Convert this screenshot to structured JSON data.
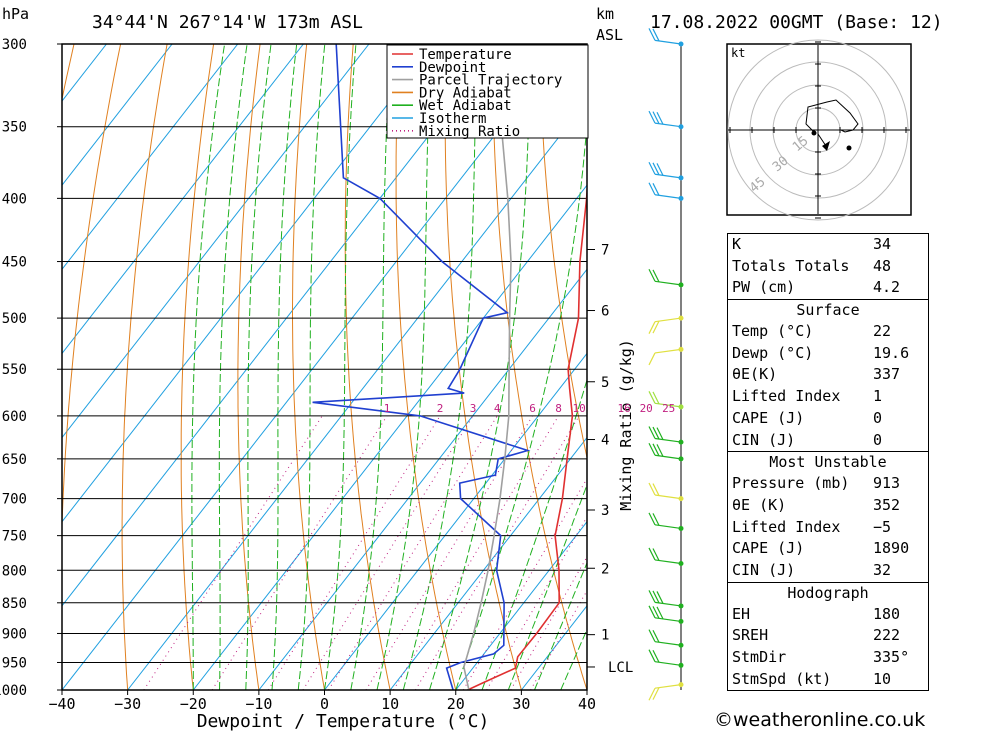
{
  "header": {
    "pressure_unit": "hPa",
    "location": "34°44'N  267°14'W  173m  ASL",
    "height_unit_1": "km",
    "height_unit_2": "ASL",
    "datetime": "17.08.2022  00GMT  (Base: 12)"
  },
  "chart_data": {
    "type": "line",
    "title": "34°44'N  267°14'W  173m  ASL",
    "xlabel": "Dewpoint / Temperature (°C)",
    "ylabel": "hPa",
    "y2label": "Mixing Ratio (g/kg)",
    "xlim": [
      -40,
      40
    ],
    "ylim": [
      1000,
      300
    ],
    "xticks": [
      -40,
      -30,
      -20,
      -10,
      0,
      10,
      20,
      30,
      40
    ],
    "xtick_labels": [
      "−40",
      "−30",
      "−20",
      "−10",
      "0",
      "10",
      "20",
      "30",
      "40"
    ],
    "pressure_levels": [
      300,
      350,
      400,
      450,
      500,
      550,
      600,
      650,
      700,
      750,
      800,
      850,
      900,
      950,
      1000
    ],
    "height_km_ticks": [
      {
        "label": "7",
        "p": 440
      },
      {
        "label": "6",
        "p": 493
      },
      {
        "label": "5",
        "p": 563
      },
      {
        "label": "4",
        "p": 627
      },
      {
        "label": "3",
        "p": 715
      },
      {
        "label": "2",
        "p": 797
      },
      {
        "label": "1",
        "p": 902
      },
      {
        "label": "LCL",
        "p": 958
      }
    ],
    "mixing_ratio_labels": [
      "1",
      "2",
      "3",
      "4",
      "6",
      "8",
      "10",
      "16",
      "20",
      "25"
    ],
    "legend": {
      "position": "top-right",
      "entries": [
        {
          "name": "Temperature",
          "color": "#e03030",
          "style": "solid"
        },
        {
          "name": "Dewpoint",
          "color": "#2040d0",
          "style": "solid"
        },
        {
          "name": "Parcel Trajectory",
          "color": "#a0a0a0",
          "style": "solid"
        },
        {
          "name": "Dry Adiabat",
          "color": "#e08020",
          "style": "solid"
        },
        {
          "name": "Wet Adiabat",
          "color": "#20b020",
          "style": "solid"
        },
        {
          "name": "Isotherm",
          "color": "#20a0e0",
          "style": "solid"
        },
        {
          "name": "Mixing Ratio",
          "color": "#c02080",
          "style": "dotted"
        }
      ]
    },
    "series": [
      {
        "name": "Temperature",
        "color": "#e03030",
        "points": [
          [
            1000,
            21.8
          ],
          [
            985,
            23.5
          ],
          [
            960,
            26.5
          ],
          [
            940,
            25.5
          ],
          [
            900,
            25.6
          ],
          [
            850,
            25.4
          ],
          [
            800,
            21.5
          ],
          [
            750,
            16.8
          ],
          [
            700,
            13.5
          ],
          [
            650,
            9.5
          ],
          [
            600,
            5.2
          ],
          [
            570,
            1.5
          ],
          [
            550,
            -1.0
          ],
          [
            500,
            -5.5
          ],
          [
            450,
            -12.0
          ],
          [
            400,
            -18.5
          ],
          [
            380,
            -21.5
          ],
          [
            360,
            -24.8
          ],
          [
            300,
            -35.0
          ]
        ]
      },
      {
        "name": "Dewpoint",
        "color": "#2040d0",
        "points": [
          [
            1000,
            19.6
          ],
          [
            960,
            16.0
          ],
          [
            950,
            17.5
          ],
          [
            935,
            21.5
          ],
          [
            920,
            22.0
          ],
          [
            850,
            17.0
          ],
          [
            800,
            12.0
          ],
          [
            750,
            8.5
          ],
          [
            700,
            -2.0
          ],
          [
            680,
            -4.0
          ],
          [
            670,
            0.5
          ],
          [
            650,
            -1.0
          ],
          [
            640,
            2.5
          ],
          [
            600,
            -18.0
          ],
          [
            585,
            -36.0
          ],
          [
            575,
            -14.0
          ],
          [
            570,
            -17.0
          ],
          [
            550,
            -17.5
          ],
          [
            500,
            -20.0
          ],
          [
            495,
            -17.0
          ],
          [
            450,
            -33.0
          ],
          [
            400,
            -50.0
          ],
          [
            385,
            -58.0
          ],
          [
            300,
            -75.0
          ]
        ]
      },
      {
        "name": "Parcel Trajectory",
        "color": "#a0a0a0",
        "points": [
          [
            1000,
            22.0
          ],
          [
            958,
            18.5
          ],
          [
            900,
            16.0
          ],
          [
            850,
            13.5
          ],
          [
            800,
            10.7
          ],
          [
            750,
            7.5
          ],
          [
            700,
            4.0
          ],
          [
            650,
            0.0
          ],
          [
            600,
            -4.5
          ],
          [
            550,
            -10.0
          ],
          [
            500,
            -16.0
          ],
          [
            450,
            -22.5
          ],
          [
            400,
            -30.5
          ],
          [
            350,
            -40.0
          ],
          [
            300,
            -51.0
          ]
        ]
      }
    ]
  },
  "hodograph": {
    "unit": "kt",
    "ring_labels": [
      "15",
      "30",
      "45"
    ]
  },
  "stats": {
    "general": [
      {
        "label": "K",
        "value": "34"
      },
      {
        "label": "Totals Totals",
        "value": "48"
      },
      {
        "label": "PW (cm)",
        "value": "4.2"
      }
    ],
    "surface": {
      "title": "Surface",
      "rows": [
        {
          "label": "Temp (°C)",
          "value": "22"
        },
        {
          "label": "Dewp (°C)",
          "value": "19.6"
        },
        {
          "label": "θE(K)",
          "value": "337"
        },
        {
          "label": "Lifted Index",
          "value": "1"
        },
        {
          "label": "CAPE (J)",
          "value": "0"
        },
        {
          "label": "CIN (J)",
          "value": "0"
        }
      ]
    },
    "most_unstable": {
      "title": "Most Unstable",
      "rows": [
        {
          "label": "Pressure (mb)",
          "value": "913"
        },
        {
          "label": "θE (K)",
          "value": "352"
        },
        {
          "label": "Lifted Index",
          "value": "−5"
        },
        {
          "label": "CAPE (J)",
          "value": "1890"
        },
        {
          "label": "CIN (J)",
          "value": "32"
        }
      ]
    },
    "hodograph": {
      "title": "Hodograph",
      "rows": [
        {
          "label": "EH",
          "value": "180"
        },
        {
          "label": "SREH",
          "value": "222"
        },
        {
          "label": "StmDir",
          "value": "335°"
        },
        {
          "label": "StmSpd (kt)",
          "value": "10"
        }
      ]
    }
  },
  "footer": {
    "copyright": "©weatheronline.co.uk"
  }
}
